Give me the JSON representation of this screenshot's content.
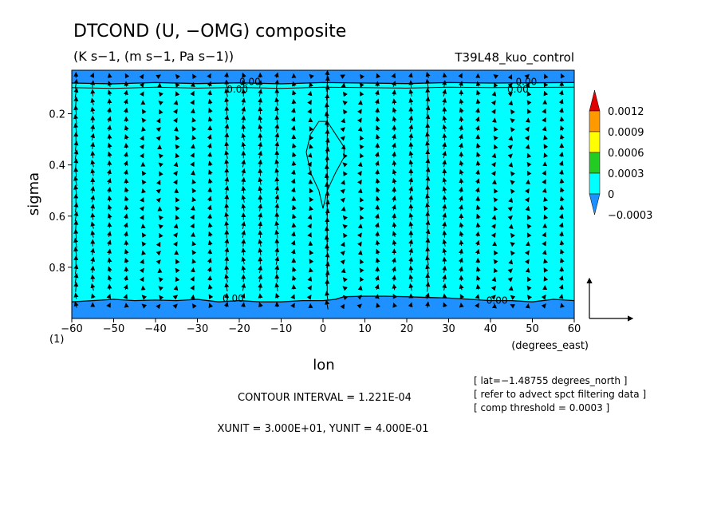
{
  "chart_data": {
    "type": "heatmap",
    "title": "DTCOND (U, −OMG) composite",
    "subtitle": "(K s−1, (m s−1, Pa s−1))",
    "run_label": "T39L48_kuo_control",
    "xlabel": "lon",
    "ylabel": "sigma",
    "x_unit_label": "(degrees_east)",
    "y_bottom_label": "(1)",
    "xlim": [
      -60,
      60
    ],
    "ylim": [
      1.0,
      0.03
    ],
    "x_ticks": [
      "−60",
      "−50",
      "−40",
      "−30",
      "−20",
      "−10",
      "0",
      "10",
      "20",
      "30",
      "40",
      "50",
      "60"
    ],
    "x_tick_values": [
      -60,
      -50,
      -40,
      -30,
      -20,
      -10,
      0,
      10,
      20,
      30,
      40,
      50,
      60
    ],
    "y_ticks": [
      "0.2",
      "0.4",
      "0.6",
      "0.8"
    ],
    "y_tick_values": [
      0.2,
      0.4,
      0.6,
      0.8
    ],
    "colorbar": {
      "levels": [
        "0.0012",
        "0.0009",
        "0.0006",
        "0.0003",
        "0",
        "−0.0003"
      ],
      "colors": [
        "#e00000",
        "#ff9900",
        "#ffff00",
        "#22cc22",
        "#00ffff",
        "#1e90ff"
      ]
    },
    "field_colors": {
      "background": "#00ffff",
      "negative": "#1e90ff"
    },
    "contour_labels": [
      {
        "text": "0.00",
        "x": -20,
        "y": 0.075
      },
      {
        "text": "0.00",
        "x": -23,
        "y": 0.105
      },
      {
        "text": "0.00",
        "x": 46,
        "y": 0.075
      },
      {
        "text": "0.00",
        "x": 44,
        "y": 0.105
      },
      {
        "text": "0.00",
        "x": -24,
        "y": 0.922
      },
      {
        "text": "0.00",
        "x": 39,
        "y": 0.93
      }
    ],
    "top_negative_boundary": [
      [
        -60,
        0.08
      ],
      [
        -50,
        0.083
      ],
      [
        -40,
        0.078
      ],
      [
        -30,
        0.082
      ],
      [
        -20,
        0.079
      ],
      [
        -10,
        0.083
      ],
      [
        0,
        0.078
      ],
      [
        10,
        0.08
      ],
      [
        20,
        0.082
      ],
      [
        30,
        0.078
      ],
      [
        40,
        0.08
      ],
      [
        50,
        0.079
      ],
      [
        60,
        0.078
      ]
    ],
    "bottom_negative_boundary": [
      [
        -60,
        0.935
      ],
      [
        -55,
        0.93
      ],
      [
        -50,
        0.925
      ],
      [
        -45,
        0.93
      ],
      [
        -40,
        0.928
      ],
      [
        -35,
        0.93
      ],
      [
        -30,
        0.925
      ],
      [
        -25,
        0.935
      ],
      [
        -20,
        0.93
      ],
      [
        -15,
        0.935
      ],
      [
        -10,
        0.935
      ],
      [
        -5,
        0.93
      ],
      [
        0,
        0.93
      ],
      [
        3,
        0.925
      ],
      [
        5,
        0.915
      ],
      [
        10,
        0.913
      ],
      [
        15,
        0.913
      ],
      [
        20,
        0.915
      ],
      [
        25,
        0.918
      ],
      [
        30,
        0.92
      ],
      [
        35,
        0.925
      ],
      [
        40,
        0.93
      ],
      [
        45,
        0.93
      ],
      [
        50,
        0.935
      ],
      [
        55,
        0.925
      ],
      [
        60,
        0.93
      ]
    ],
    "closed_contour": [
      [
        -1,
        0.23
      ],
      [
        -3,
        0.28
      ],
      [
        -4,
        0.35
      ],
      [
        -3,
        0.43
      ],
      [
        -1,
        0.5
      ],
      [
        0,
        0.57
      ],
      [
        1,
        0.5
      ],
      [
        3,
        0.43
      ],
      [
        5,
        0.37
      ],
      [
        5,
        0.33
      ],
      [
        3,
        0.28
      ],
      [
        1,
        0.23
      ],
      [
        -1,
        0.23
      ]
    ],
    "vector_reference": {
      "xunit": "3.000E+01",
      "yunit": "4.000E-01"
    }
  },
  "footer": {
    "contour_interval": "CONTOUR INTERVAL = 1.221E-04",
    "units": "XUNIT = 3.000E+01, YUNIT = 4.000E-01"
  },
  "notes": [
    "[ lat=−1.48755 degrees_north ]",
    "[ refer to advect spct filtering data ]",
    "[ comp threshold = 0.0003 ]"
  ]
}
